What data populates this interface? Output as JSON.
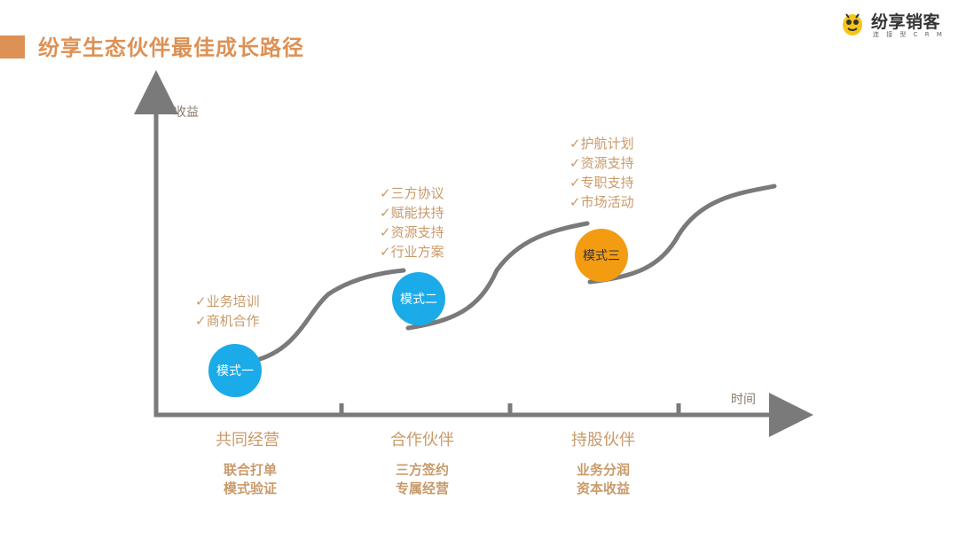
{
  "header": {
    "title": "纷享生态伙伴最佳成长路径"
  },
  "logo": {
    "name": "纷享销客",
    "tagline": "连 接 型 C R M"
  },
  "axes": {
    "y_label": "收益",
    "x_label": "时间"
  },
  "modes": [
    {
      "label": "模式一",
      "benefits": [
        "✓业务培训",
        "✓商机合作"
      ]
    },
    {
      "label": "模式二",
      "benefits": [
        "✓三方协议",
        "✓赋能扶持",
        "✓资源支持",
        "✓行业方案"
      ]
    },
    {
      "label": "模式三",
      "benefits": [
        "✓护航计划",
        "✓资源支持",
        "✓专职支持",
        "✓市场活动"
      ]
    }
  ],
  "stages": [
    {
      "name": "共同经营",
      "details": [
        "联合打单",
        "模式验证"
      ]
    },
    {
      "name": "合作伙伴",
      "details": [
        "三方签约",
        "专属经营"
      ]
    },
    {
      "name": "持股伙伴",
      "details": [
        "业务分润",
        "资本收益"
      ]
    }
  ],
  "colors": {
    "accent": "#dd9155",
    "text_orange": "#c99a6a",
    "axis": "#7a7a7a",
    "circle_blue": "#1aabe8",
    "circle_orange": "#f39c12",
    "logo_yellow": "#f5c518"
  }
}
